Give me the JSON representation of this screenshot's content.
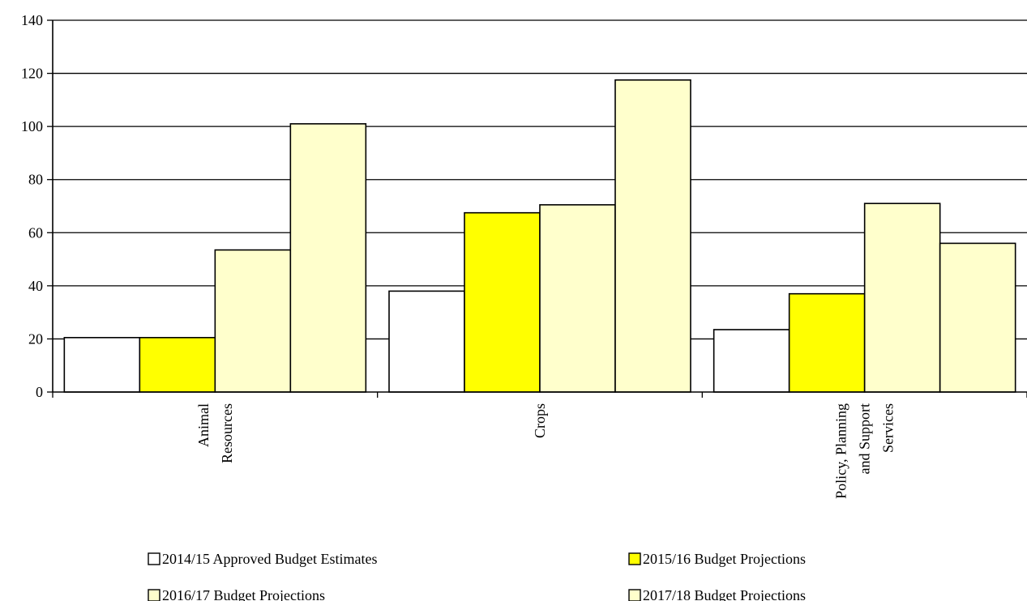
{
  "chart_data": {
    "type": "bar",
    "title": "",
    "xlabel": "",
    "ylabel": "",
    "ylim": [
      0,
      140
    ],
    "yticks": [
      0,
      20,
      40,
      60,
      80,
      100,
      120,
      140
    ],
    "grid": true,
    "legend_position": "bottom",
    "categories": [
      [
        "Animal",
        "Resources"
      ],
      [
        "Crops"
      ],
      [
        "Policy, Planning",
        "and Support",
        "Services"
      ]
    ],
    "series": [
      {
        "name": "2014/15 Approved Budget Estimates",
        "color": "#ffffff",
        "values": [
          20.5,
          38,
          23.5
        ]
      },
      {
        "name": "2015/16 Budget Projections",
        "color": "#ffff00",
        "values": [
          20.5,
          67.5,
          37
        ]
      },
      {
        "name": "2016/17 Budget Projections",
        "color": "#ffffcc",
        "values": [
          53.5,
          70.5,
          71
        ]
      },
      {
        "name": "2017/18 Budget Projections",
        "color": "#ffffcc",
        "values": [
          101,
          117.5,
          56
        ]
      }
    ]
  }
}
